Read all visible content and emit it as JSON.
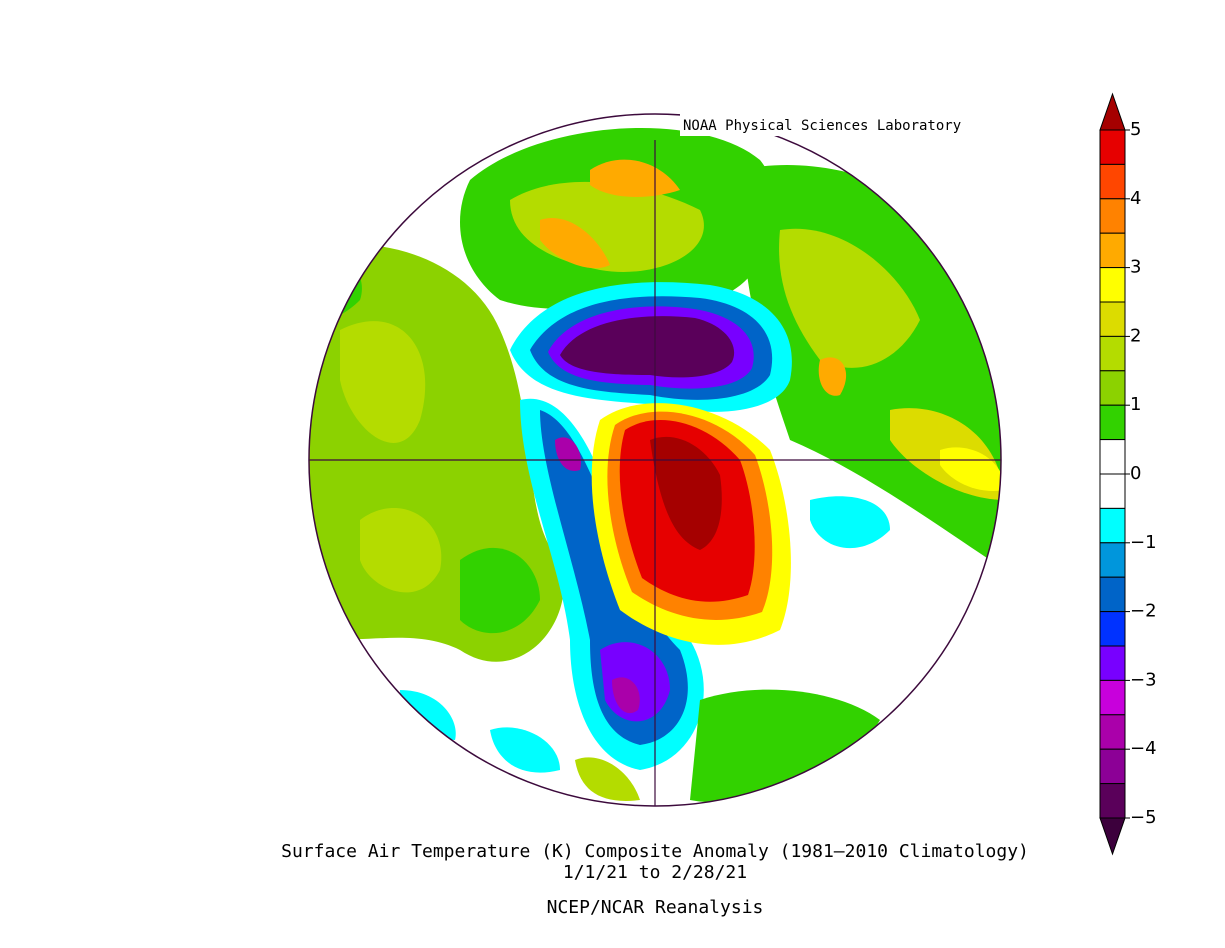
{
  "header": {
    "credit": "NOAA Physical Sciences Laboratory"
  },
  "footer": {
    "title": "Surface Air Temperature (K) Composite Anomaly (1981–2010 Climatology)",
    "dates": "1/1/21  to 2/28/21",
    "source": "NCEP/NCAR Reanalysis"
  },
  "colorbar": {
    "ticks": [
      5,
      4,
      3,
      2,
      1,
      0,
      {
        "value": -1,
        "label": "−1"
      },
      {
        "value": -2,
        "label": "−2"
      },
      {
        "value": -3,
        "label": "−3"
      },
      {
        "value": -4,
        "label": "−4"
      },
      {
        "value": -5,
        "label": "−5"
      }
    ],
    "colors": [
      "#a50000",
      "#e60000",
      "#ff4600",
      "#ff8200",
      "#ffaa00",
      "#ffff00",
      "#dcdc00",
      "#b4dc00",
      "#8cd200",
      "#32d200",
      "#ffffff",
      "#ffffff",
      "#00ffff",
      "#0096dc",
      "#0064c8",
      "#0032ff",
      "#7800ff",
      "#c800dc",
      "#aa00aa",
      "#8c0096",
      "#5a005a",
      "#3c003c"
    ]
  }
}
